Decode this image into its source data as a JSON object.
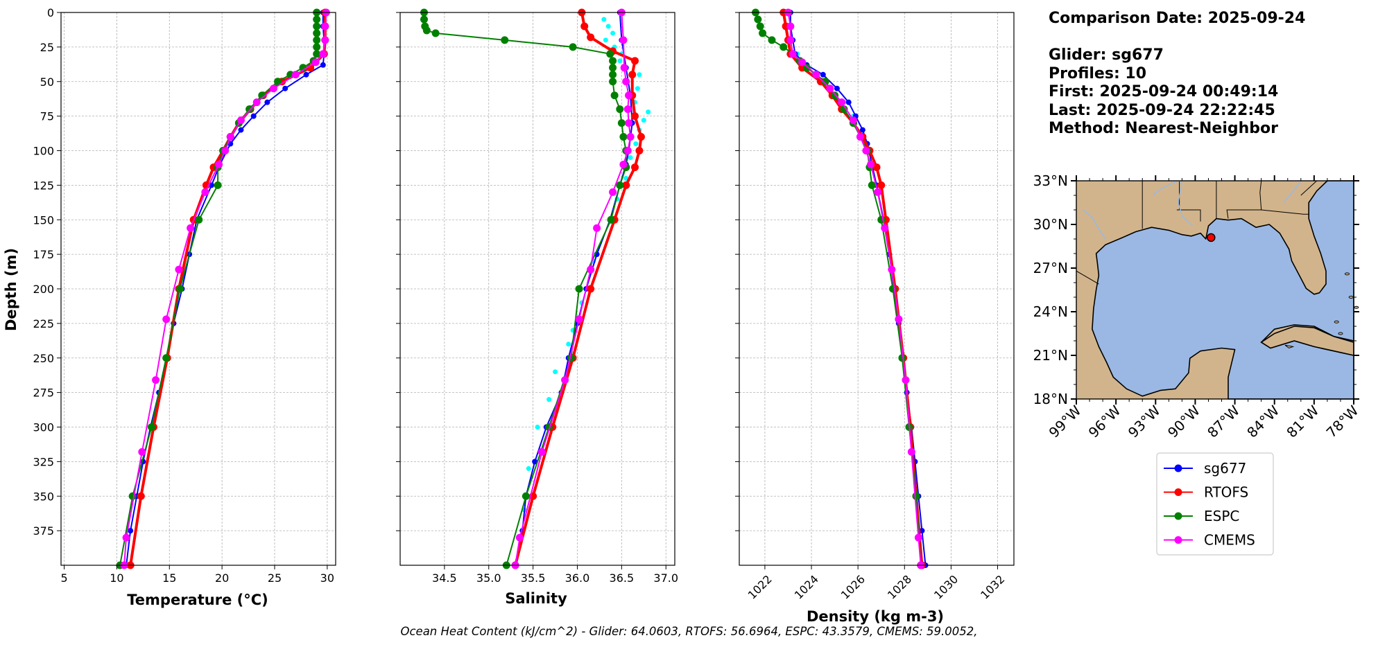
{
  "info": {
    "comparison_date": "Comparison Date: 2025-09-24",
    "glider": "Glider: sg677",
    "profiles": "Profiles: 10",
    "first": "First: 2025-09-24 00:49:14",
    "last": "Last: 2025-09-24 22:22:45",
    "method": "Method: Nearest-Neighbor"
  },
  "footer": "Ocean Heat Content (kJ/cm^2) - Glider: 64.0603,  RTOFS: 56.6964,  ESPC: 43.3579,  CMEMS: 59.0052,",
  "legend": [
    "sg677",
    "RTOFS",
    "ESPC",
    "CMEMS"
  ],
  "colors": {
    "sg677": "#0000ff",
    "sg677_scatter": "#00ffff",
    "RTOFS": "#ff0000",
    "ESPC": "#008000",
    "CMEMS": "#ff00ff",
    "land": "#d2b48c",
    "ocean": "#9ab8e3",
    "grid": "#b0b0b0"
  },
  "chart_data": [
    {
      "type": "line",
      "xlabel": "Temperature (°C)",
      "ylabel": "Depth (m)",
      "xlim": [
        4.7,
        30.8
      ],
      "ylim": [
        0,
        400
      ],
      "y_inverted": true,
      "grid": true,
      "xticks": [
        5,
        10,
        15,
        20,
        25,
        30
      ],
      "yticks": [
        0,
        25,
        50,
        75,
        100,
        125,
        150,
        175,
        200,
        225,
        250,
        275,
        300,
        325,
        350,
        375
      ],
      "ytick_labels": [
        "0",
        "25",
        "50",
        "75",
        "100",
        "125",
        "150",
        "175",
        "200",
        "225",
        "250",
        "275",
        "300",
        "325",
        "350",
        "375"
      ],
      "series": [
        {
          "name": "sg677",
          "depth": [
            0,
            10,
            20,
            30,
            38,
            45,
            55,
            65,
            75,
            85,
            95,
            110,
            125,
            150,
            175,
            200,
            225,
            250,
            275,
            300,
            325,
            350,
            375,
            400
          ],
          "values": [
            29.6,
            29.6,
            29.7,
            29.7,
            29.6,
            28.0,
            26.0,
            24.3,
            23.0,
            21.8,
            20.8,
            19.8,
            19.0,
            17.6,
            16.9,
            16.2,
            15.4,
            14.7,
            14.0,
            13.2,
            12.5,
            11.9,
            11.3,
            10.9
          ]
        },
        {
          "name": "RTOFS",
          "depth": [
            0,
            10,
            20,
            30,
            40,
            50,
            60,
            70,
            80,
            90,
            100,
            112,
            125,
            150,
            200,
            250,
            300,
            350,
            400
          ],
          "values": [
            29.8,
            29.8,
            29.8,
            29.7,
            28.4,
            25.7,
            23.9,
            22.7,
            21.6,
            20.8,
            20.1,
            19.2,
            18.5,
            17.3,
            15.9,
            14.8,
            13.5,
            12.3,
            11.3
          ]
        },
        {
          "name": "ESPC",
          "depth": [
            0,
            5,
            10,
            15,
            20,
            25,
            30,
            35,
            40,
            45,
            50,
            60,
            70,
            80,
            90,
            100,
            112,
            125,
            150,
            200,
            250,
            300,
            350,
            400
          ],
          "values": [
            29.0,
            29.0,
            29.0,
            29.0,
            29.0,
            29.0,
            29.0,
            28.7,
            27.7,
            26.5,
            25.3,
            23.8,
            22.6,
            21.6,
            20.8,
            20.1,
            19.6,
            19.6,
            17.8,
            16.0,
            14.7,
            13.3,
            11.5,
            10.3
          ]
        },
        {
          "name": "CMEMS",
          "depth": [
            0,
            10,
            20,
            30,
            36,
            45,
            55,
            65,
            78,
            90,
            100,
            110,
            130,
            156,
            186,
            222,
            266,
            318,
            380,
            400
          ],
          "values": [
            29.9,
            29.8,
            29.8,
            29.6,
            28.9,
            27.0,
            24.9,
            23.3,
            21.8,
            20.8,
            20.3,
            19.7,
            18.4,
            17.0,
            15.9,
            14.7,
            13.7,
            12.4,
            10.9,
            10.7
          ]
        }
      ]
    },
    {
      "type": "line",
      "xlabel": "Salinity",
      "xlim": [
        34.0,
        37.1
      ],
      "ylim": [
        0,
        400
      ],
      "y_inverted": true,
      "grid": true,
      "xticks": [
        34.5,
        35.0,
        35.5,
        36.0,
        36.5,
        37.0
      ],
      "xtick_labels": [
        "34.5",
        "35.0",
        "35.5",
        "36.0",
        "36.5",
        "37.0"
      ],
      "series": [
        {
          "name": "sg677",
          "depth": [
            0,
            20,
            40,
            60,
            80,
            100,
            110,
            125,
            150,
            175,
            200,
            225,
            250,
            275,
            300,
            325,
            350,
            375,
            400
          ],
          "values": [
            36.48,
            36.5,
            36.55,
            36.6,
            36.62,
            36.58,
            36.55,
            36.48,
            36.37,
            36.22,
            36.1,
            36.0,
            35.9,
            35.82,
            35.65,
            35.52,
            35.42,
            35.38,
            35.3
          ]
        },
        {
          "name": "RTOFS",
          "depth": [
            0,
            10,
            18,
            28,
            35,
            45,
            60,
            75,
            90,
            100,
            112,
            125,
            150,
            200,
            250,
            300,
            350,
            400
          ],
          "values": [
            36.05,
            36.08,
            36.15,
            36.4,
            36.65,
            36.62,
            36.62,
            36.65,
            36.72,
            36.7,
            36.65,
            36.55,
            36.42,
            36.15,
            35.95,
            35.72,
            35.5,
            35.3
          ]
        },
        {
          "name": "ESPC",
          "depth": [
            0,
            5,
            10,
            13,
            15,
            20,
            25,
            30,
            35,
            40,
            45,
            50,
            60,
            70,
            80,
            90,
            100,
            112,
            125,
            150,
            200,
            250,
            300,
            350,
            400
          ],
          "values": [
            34.27,
            34.27,
            34.28,
            34.3,
            34.4,
            35.18,
            35.95,
            36.37,
            36.4,
            36.4,
            36.4,
            36.4,
            36.42,
            36.48,
            36.5,
            36.52,
            36.55,
            36.55,
            36.48,
            36.38,
            36.02,
            35.93,
            35.68,
            35.42,
            35.2
          ]
        },
        {
          "name": "CMEMS",
          "depth": [
            0,
            20,
            40,
            50,
            60,
            70,
            80,
            90,
            100,
            110,
            130,
            156,
            186,
            222,
            266,
            318,
            380,
            400
          ],
          "values": [
            36.5,
            36.52,
            36.53,
            36.55,
            36.58,
            36.57,
            36.58,
            36.6,
            36.57,
            36.52,
            36.4,
            36.22,
            36.15,
            36.02,
            35.86,
            35.6,
            35.35,
            35.3
          ]
        }
      ],
      "scatter": {
        "name": "sg677",
        "depth": [
          5,
          10,
          15,
          20,
          25,
          30,
          35,
          40,
          45,
          55,
          65,
          72,
          78,
          85,
          95,
          105,
          120,
          135,
          150,
          180,
          200,
          210,
          230,
          240,
          260,
          280,
          300,
          330,
          360
        ],
        "values": [
          36.3,
          36.35,
          36.4,
          36.32,
          36.42,
          36.5,
          36.48,
          36.55,
          36.7,
          36.68,
          36.65,
          36.8,
          36.75,
          36.7,
          36.66,
          36.6,
          36.55,
          36.45,
          36.42,
          36.18,
          36.15,
          36.05,
          35.95,
          35.9,
          35.75,
          35.68,
          35.55,
          35.45,
          35.4
        ]
      }
    },
    {
      "type": "line",
      "xlabel": "Density (kg m-3)",
      "xlim": [
        1020.9,
        1032.7
      ],
      "ylim": [
        0,
        400
      ],
      "y_inverted": true,
      "grid": true,
      "xticks": [
        1022,
        1024,
        1026,
        1028,
        1030,
        1032
      ],
      "series": [
        {
          "name": "sg677",
          "depth": [
            0,
            10,
            20,
            30,
            38,
            45,
            55,
            65,
            75,
            85,
            95,
            110,
            125,
            150,
            175,
            200,
            225,
            250,
            275,
            300,
            325,
            350,
            375,
            400
          ],
          "values": [
            1023.1,
            1023.1,
            1023.2,
            1023.3,
            1023.8,
            1024.5,
            1025.1,
            1025.6,
            1025.9,
            1026.2,
            1026.4,
            1026.6,
            1026.8,
            1027.1,
            1027.35,
            1027.55,
            1027.75,
            1027.95,
            1028.1,
            1028.3,
            1028.45,
            1028.6,
            1028.75,
            1028.9
          ]
        },
        {
          "name": "RTOFS",
          "depth": [
            0,
            10,
            20,
            30,
            40,
            50,
            60,
            70,
            80,
            90,
            100,
            112,
            125,
            150,
            200,
            250,
            300,
            350,
            400
          ],
          "values": [
            1022.8,
            1022.9,
            1023.0,
            1023.1,
            1023.6,
            1024.4,
            1024.9,
            1025.3,
            1025.8,
            1026.2,
            1026.5,
            1026.8,
            1027.0,
            1027.2,
            1027.6,
            1027.95,
            1028.25,
            1028.5,
            1028.75
          ]
        },
        {
          "name": "ESPC",
          "depth": [
            0,
            5,
            10,
            15,
            20,
            25,
            30,
            35,
            40,
            45,
            50,
            60,
            70,
            80,
            90,
            100,
            112,
            125,
            150,
            200,
            250,
            300,
            350,
            400
          ],
          "values": [
            1021.6,
            1021.7,
            1021.8,
            1021.9,
            1022.3,
            1022.8,
            1023.2,
            1023.5,
            1023.8,
            1024.2,
            1024.6,
            1025.0,
            1025.4,
            1025.8,
            1026.1,
            1026.4,
            1026.5,
            1026.6,
            1027.0,
            1027.5,
            1027.9,
            1028.2,
            1028.5,
            1028.7
          ]
        },
        {
          "name": "CMEMS",
          "depth": [
            0,
            10,
            20,
            30,
            36,
            45,
            55,
            65,
            78,
            90,
            100,
            110,
            130,
            156,
            186,
            222,
            266,
            318,
            380,
            400
          ],
          "values": [
            1023.0,
            1023.1,
            1023.1,
            1023.2,
            1023.6,
            1024.2,
            1024.8,
            1025.3,
            1025.8,
            1026.1,
            1026.35,
            1026.55,
            1026.85,
            1027.15,
            1027.45,
            1027.75,
            1028.05,
            1028.3,
            1028.6,
            1028.7
          ]
        }
      ],
      "scatter": {
        "name": "sg677",
        "depth": [
          10,
          20,
          30,
          40,
          45,
          55,
          65,
          75
        ],
        "values": [
          1023.0,
          1023.2,
          1023.4,
          1023.7,
          1024.1,
          1024.7,
          1025.4,
          1025.8
        ]
      }
    },
    {
      "type": "map",
      "ylim": [
        18,
        33
      ],
      "xlim": [
        -99,
        -78
      ],
      "yticks": [
        "18°N",
        "21°N",
        "24°N",
        "27°N",
        "30°N",
        "33°N"
      ],
      "xticks": [
        "99°W",
        "96°W",
        "93°W",
        "90°W",
        "87°W",
        "84°W",
        "81°W",
        "78°W"
      ],
      "glider_location": {
        "lat": 29.1,
        "lon": -88.8
      }
    }
  ]
}
